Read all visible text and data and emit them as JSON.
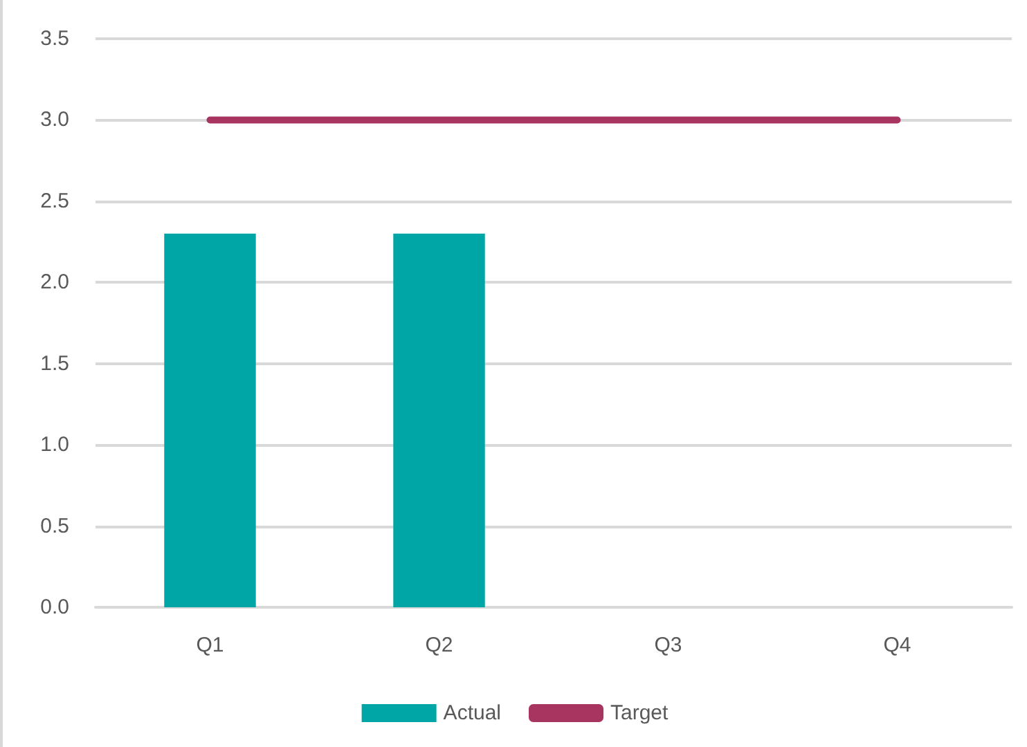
{
  "chart_data": {
    "type": "bar",
    "categories": [
      "Q1",
      "Q2",
      "Q3",
      "Q4"
    ],
    "series": [
      {
        "name": "Actual",
        "color": "#00a6a6",
        "values": [
          2.3,
          2.3,
          null,
          null
        ]
      },
      {
        "name": "Target",
        "type": "line",
        "color": "#a8355f",
        "values": [
          3,
          3,
          3,
          3
        ]
      }
    ],
    "ylim": [
      0,
      3.5
    ],
    "yticks": [
      {
        "value": 0,
        "label": "0.0"
      },
      0.5,
      {
        "value": 1,
        "label": "1.0"
      },
      1.5,
      {
        "value": 2,
        "label": "2.0"
      },
      2.5,
      {
        "value": 3,
        "label": "3.0"
      },
      3.5
    ],
    "grid": "y",
    "legend": "bottom",
    "marker": "none",
    "line_style": "solid"
  }
}
